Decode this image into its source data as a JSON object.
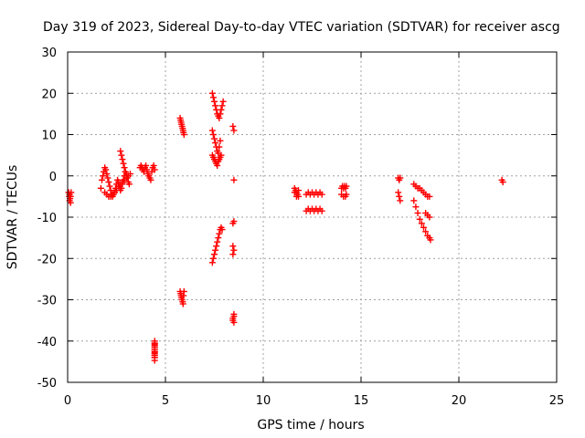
{
  "chart_data": {
    "type": "scatter",
    "title": "Day 319 of 2023, Sidereal Day-to-day VTEC variation (SDTVAR) for receiver ascg",
    "xlabel": "GPS time / hours",
    "ylabel": "SDTVAR / TECUs",
    "xlim": [
      0,
      25
    ],
    "ylim": [
      -50,
      30
    ],
    "xticks": [
      "0",
      "5",
      "10",
      "15",
      "20",
      "25"
    ],
    "yticks": [
      "30",
      "20",
      "10",
      "0",
      "-10",
      "-20",
      "-30",
      "-40",
      "-50"
    ],
    "grid": true,
    "marker": "+",
    "color": "#ff0000",
    "series": [
      {
        "name": "SDTVAR",
        "x": [
          0.05,
          0.08,
          0.1,
          0.1,
          0.12,
          0.15,
          0.15,
          0.18,
          1.7,
          1.75,
          1.8,
          1.85,
          1.9,
          1.95,
          2.0,
          2.05,
          2.1,
          2.15,
          2.2,
          2.25,
          2.3,
          2.35,
          2.4,
          2.45,
          2.5,
          2.55,
          2.6,
          2.65,
          2.7,
          2.75,
          2.8,
          2.85,
          2.9,
          2.95,
          3.0,
          3.05,
          3.1,
          3.15,
          1.9,
          2.0,
          2.1,
          2.2,
          2.3,
          2.4,
          2.5,
          2.6,
          2.7,
          2.8,
          2.9,
          3.0,
          3.1,
          3.2,
          2.7,
          2.75,
          2.8,
          2.85,
          2.9,
          2.95,
          3.0,
          3.7,
          3.75,
          3.8,
          3.85,
          3.9,
          3.95,
          4.0,
          4.05,
          4.1,
          4.15,
          4.2,
          4.25,
          4.3,
          4.35,
          4.4,
          4.45,
          4.45,
          4.45,
          4.45,
          4.45,
          4.45,
          4.45,
          4.45,
          4.45,
          4.45,
          4.45,
          4.45,
          4.45,
          4.45,
          4.45,
          4.45,
          4.45,
          5.75,
          5.78,
          5.8,
          5.82,
          5.85,
          5.88,
          5.9,
          5.92,
          5.95,
          5.75,
          5.78,
          5.8,
          5.82,
          5.85,
          5.88,
          5.9,
          5.92,
          5.95,
          7.4,
          7.45,
          7.5,
          7.55,
          7.6,
          7.65,
          7.7,
          7.75,
          7.8,
          7.85,
          7.9,
          7.95,
          7.4,
          7.45,
          7.5,
          7.55,
          7.6,
          7.65,
          7.7,
          7.75,
          7.8,
          7.4,
          7.45,
          7.5,
          7.55,
          7.6,
          7.65,
          7.7,
          7.75,
          7.8,
          7.85,
          7.4,
          7.45,
          7.5,
          7.55,
          7.6,
          7.65,
          7.7,
          7.75,
          7.8,
          7.85,
          7.9,
          8.45,
          8.5,
          8.5,
          8.45,
          8.5,
          8.45,
          8.5,
          8.45,
          8.5,
          8.45,
          8.5,
          8.45,
          8.5,
          11.6,
          11.65,
          11.7,
          11.75,
          11.8,
          11.6,
          11.7,
          11.8,
          12.2,
          12.3,
          12.4,
          12.5,
          12.6,
          12.7,
          12.8,
          12.9,
          13.0,
          12.2,
          12.3,
          12.4,
          12.5,
          12.6,
          12.7,
          12.8,
          12.9,
          13.0,
          14.0,
          14.05,
          14.1,
          14.15,
          14.2,
          14.25,
          14.0,
          14.1,
          14.2,
          14.25,
          16.9,
          16.95,
          17.0,
          16.9,
          16.95,
          17.0,
          17.7,
          17.8,
          17.9,
          18.0,
          18.1,
          18.2,
          18.3,
          18.4,
          18.5,
          17.7,
          17.8,
          17.9,
          18.0,
          18.1,
          18.2,
          18.3,
          18.4,
          18.5,
          18.55,
          18.3,
          18.4,
          18.5,
          22.2,
          22.25
        ],
        "y": [
          -4,
          -5,
          -6,
          -4.5,
          -5.5,
          -6.5,
          -5,
          -4,
          -3,
          -1,
          0,
          1,
          2,
          1.5,
          0.5,
          -0.5,
          -1.5,
          -2.5,
          -3.5,
          -4.5,
          -5,
          -4.5,
          -4,
          -3,
          -2,
          -1,
          -1.5,
          -2.5,
          -3.5,
          -3,
          -2,
          -1,
          0,
          1,
          0.5,
          -0.5,
          -1.5,
          -2,
          -4,
          -4.5,
          -5,
          -5,
          -4.5,
          -4,
          -3.5,
          -2.5,
          -2,
          -1.5,
          -1,
          -0.5,
          0,
          0.5,
          6,
          5,
          4,
          3,
          2,
          1,
          0,
          2,
          2.5,
          2,
          1.5,
          1,
          2,
          2.5,
          1.5,
          0.5,
          0,
          -0.5,
          -1,
          1,
          2,
          2.5,
          1.5,
          -40,
          -40.7,
          -41.4,
          -42,
          -42.7,
          -43.4,
          -44,
          -44.7,
          -40.5,
          -41.5,
          -42.5,
          -43.5,
          -41,
          -42,
          -43,
          -44,
          14,
          13.5,
          13,
          12.5,
          12,
          11.5,
          11,
          10.5,
          10,
          -28,
          -28.5,
          -29,
          -29.5,
          -30,
          -30.5,
          -31,
          -29,
          -28,
          20,
          19,
          18,
          17,
          16,
          15,
          14.5,
          14,
          15,
          16,
          17,
          18,
          11,
          10,
          9,
          8,
          7,
          6,
          5.5,
          7,
          8.5,
          5,
          4.5,
          4,
          3.5,
          3,
          2.5,
          3.5,
          4,
          4.5,
          5,
          -21,
          -20,
          -19,
          -18,
          -17,
          -16,
          -15,
          -14,
          -13,
          -12.5,
          -13,
          12,
          11,
          -1,
          -11.5,
          -11,
          -17,
          -18,
          -19,
          -34,
          -35,
          -33.5,
          -34.5,
          -35.5,
          -3,
          -3.5,
          -4,
          -4.5,
          -5,
          -4,
          -5,
          -3.5,
          -4.5,
          -4,
          -4.5,
          -4,
          -4.5,
          -4,
          -4.5,
          -4,
          -4.5,
          -8.5,
          -8,
          -8.5,
          -8,
          -8.5,
          -8,
          -8.5,
          -8,
          -8.5,
          -3,
          -2.5,
          -3,
          -2.5,
          -3,
          -2.5,
          -4.5,
          -5,
          -5,
          -4.5,
          -0.5,
          -1,
          -0.5,
          -4,
          -5,
          -6,
          -2,
          -2.5,
          -3,
          -3,
          -3.5,
          -4,
          -4.5,
          -5,
          -5,
          -6,
          -7.5,
          -9,
          -10.5,
          -11.5,
          -12.5,
          -13.5,
          -14.5,
          -15,
          -15.5,
          -9,
          -9.5,
          -10,
          -1,
          -1.5
        ]
      }
    ]
  }
}
